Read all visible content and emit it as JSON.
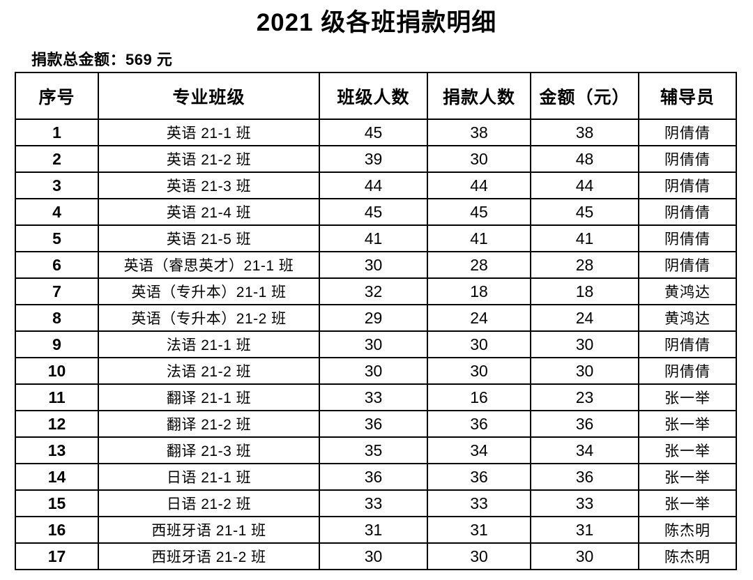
{
  "title": "2021 级各班捐款明细",
  "total_line": "捐款总金额：569 元",
  "table": {
    "headers": [
      "序号",
      "专业班级",
      "班级人数",
      "捐款人数",
      "金额（元）",
      "辅导员"
    ],
    "rows": [
      [
        "1",
        "英语 21-1 班",
        "45",
        "38",
        "38",
        "阴倩倩"
      ],
      [
        "2",
        "英语 21-2 班",
        "39",
        "30",
        "48",
        "阴倩倩"
      ],
      [
        "3",
        "英语 21-3 班",
        "44",
        "44",
        "44",
        "阴倩倩"
      ],
      [
        "4",
        "英语 21-4 班",
        "45",
        "45",
        "45",
        "阴倩倩"
      ],
      [
        "5",
        "英语 21-5 班",
        "41",
        "41",
        "41",
        "阴倩倩"
      ],
      [
        "6",
        "英语（睿思英才）21-1 班",
        "30",
        "28",
        "28",
        "阴倩倩"
      ],
      [
        "7",
        "英语（专升本）21-1 班",
        "32",
        "18",
        "18",
        "黄鸿达"
      ],
      [
        "8",
        "英语（专升本）21-2 班",
        "29",
        "24",
        "24",
        "黄鸿达"
      ],
      [
        "9",
        "法语 21-1 班",
        "30",
        "30",
        "30",
        "阴倩倩"
      ],
      [
        "10",
        "法语 21-2 班",
        "30",
        "30",
        "30",
        "阴倩倩"
      ],
      [
        "11",
        "翻译 21-1 班",
        "33",
        "16",
        "23",
        "张一举"
      ],
      [
        "12",
        "翻译 21-2 班",
        "36",
        "36",
        "36",
        "张一举"
      ],
      [
        "13",
        "翻译 21-3 班",
        "35",
        "34",
        "34",
        "张一举"
      ],
      [
        "14",
        "日语 21-1 班",
        "36",
        "36",
        "36",
        "张一举"
      ],
      [
        "15",
        "日语 21-2 班",
        "33",
        "33",
        "33",
        "张一举"
      ],
      [
        "16",
        "西班牙语 21-1 班",
        "31",
        "31",
        "31",
        "陈杰明"
      ],
      [
        "17",
        "西班牙语 21-2 班",
        "30",
        "30",
        "30",
        "陈杰明"
      ]
    ]
  }
}
